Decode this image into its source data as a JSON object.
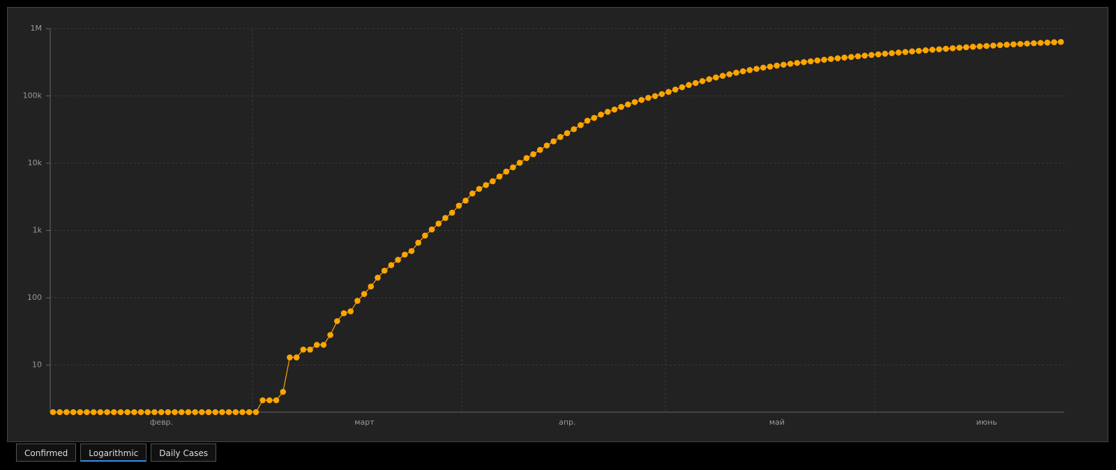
{
  "chart_data": {
    "type": "line",
    "log_scale": true,
    "grid": true,
    "color": "#ffa500",
    "categories": [
      null,
      null,
      null,
      null,
      null,
      null,
      null,
      null,
      null,
      null,
      null,
      null,
      null,
      null,
      null,
      "февр.",
      null,
      null,
      null,
      null,
      null,
      null,
      null,
      null,
      null,
      null,
      null,
      null,
      null,
      null,
      null,
      null,
      null,
      null,
      null,
      null,
      null,
      null,
      null,
      null,
      null,
      null,
      null,
      null,
      null,
      "март",
      null,
      null,
      null,
      null,
      null,
      null,
      null,
      null,
      null,
      null,
      null,
      null,
      null,
      null,
      null,
      null,
      null,
      null,
      null,
      null,
      null,
      null,
      null,
      null,
      null,
      null,
      null,
      null,
      null,
      "апр.",
      null,
      null,
      null,
      null,
      null,
      null,
      null,
      null,
      null,
      null,
      null,
      null,
      null,
      null,
      null,
      null,
      null,
      null,
      null,
      null,
      null,
      null,
      null,
      null,
      null,
      null,
      null,
      null,
      null,
      null,
      "май",
      null,
      null,
      null,
      null,
      null,
      null,
      null,
      null,
      null,
      null,
      null,
      null,
      null,
      null,
      null,
      null,
      null,
      null,
      null,
      null,
      null,
      null,
      null,
      null,
      null,
      null,
      null,
      null,
      null,
      null,
      "июнь",
      null,
      null,
      null,
      null,
      null,
      null,
      null,
      null,
      null,
      null,
      null,
      null
    ],
    "values": [
      2,
      2,
      2,
      2,
      2,
      2,
      2,
      2,
      2,
      2,
      2,
      2,
      2,
      2,
      2,
      2,
      2,
      2,
      2,
      2,
      2,
      2,
      2,
      2,
      2,
      2,
      2,
      2,
      2,
      2,
      2,
      3,
      3,
      3,
      4,
      13,
      13,
      17,
      17,
      20,
      20,
      28,
      45,
      59,
      63,
      90,
      114,
      147,
      199,
      253,
      306,
      367,
      438,
      495,
      658,
      840,
      1036,
      1264,
      1534,
      1836,
      2337,
      2777,
      3548,
      4149,
      4731,
      5389,
      6343,
      7497,
      8672,
      10131,
      11917,
      13584,
      15770,
      18328,
      21102,
      24490,
      27938,
      32008,
      36793,
      42853,
      47121,
      52763,
      57999,
      62773,
      68622,
      74588,
      80949,
      87147,
      93558,
      99399,
      106498,
      114431,
      124054,
      134687,
      145268,
      155370,
      165929,
      177160,
      187859,
      198676,
      209688,
      221344,
      232243,
      242271,
      252245,
      262843,
      272043,
      281752,
      290678,
      299941,
      308705,
      317554,
      326448,
      335882,
      344481,
      353427,
      362342,
      370680,
      379051,
      387623,
      396575,
      405843,
      414328,
      423186,
      431715,
      440538,
      449256,
      458102,
      467073,
      476043,
      484630,
      493023,
      501800,
      510761,
      519458,
      528267,
      536484,
      544725,
      552549,
      560321,
      568292,
      576162,
      583879,
      591465,
      598878,
      606043,
      613148,
      619936,
      626779,
      633563
    ],
    "ylim": [
      2,
      1000000
    ],
    "yticks": [
      10,
      100,
      {
        "value": 1000,
        "label": "1k"
      },
      {
        "value": 10000,
        "label": "10k"
      },
      {
        "value": 100000,
        "label": "100k"
      },
      {
        "value": 1000000,
        "label": "1M"
      }
    ]
  },
  "tabs": [
    "Confirmed",
    "Logarithmic",
    "Daily Cases"
  ],
  "active_tab": 1
}
